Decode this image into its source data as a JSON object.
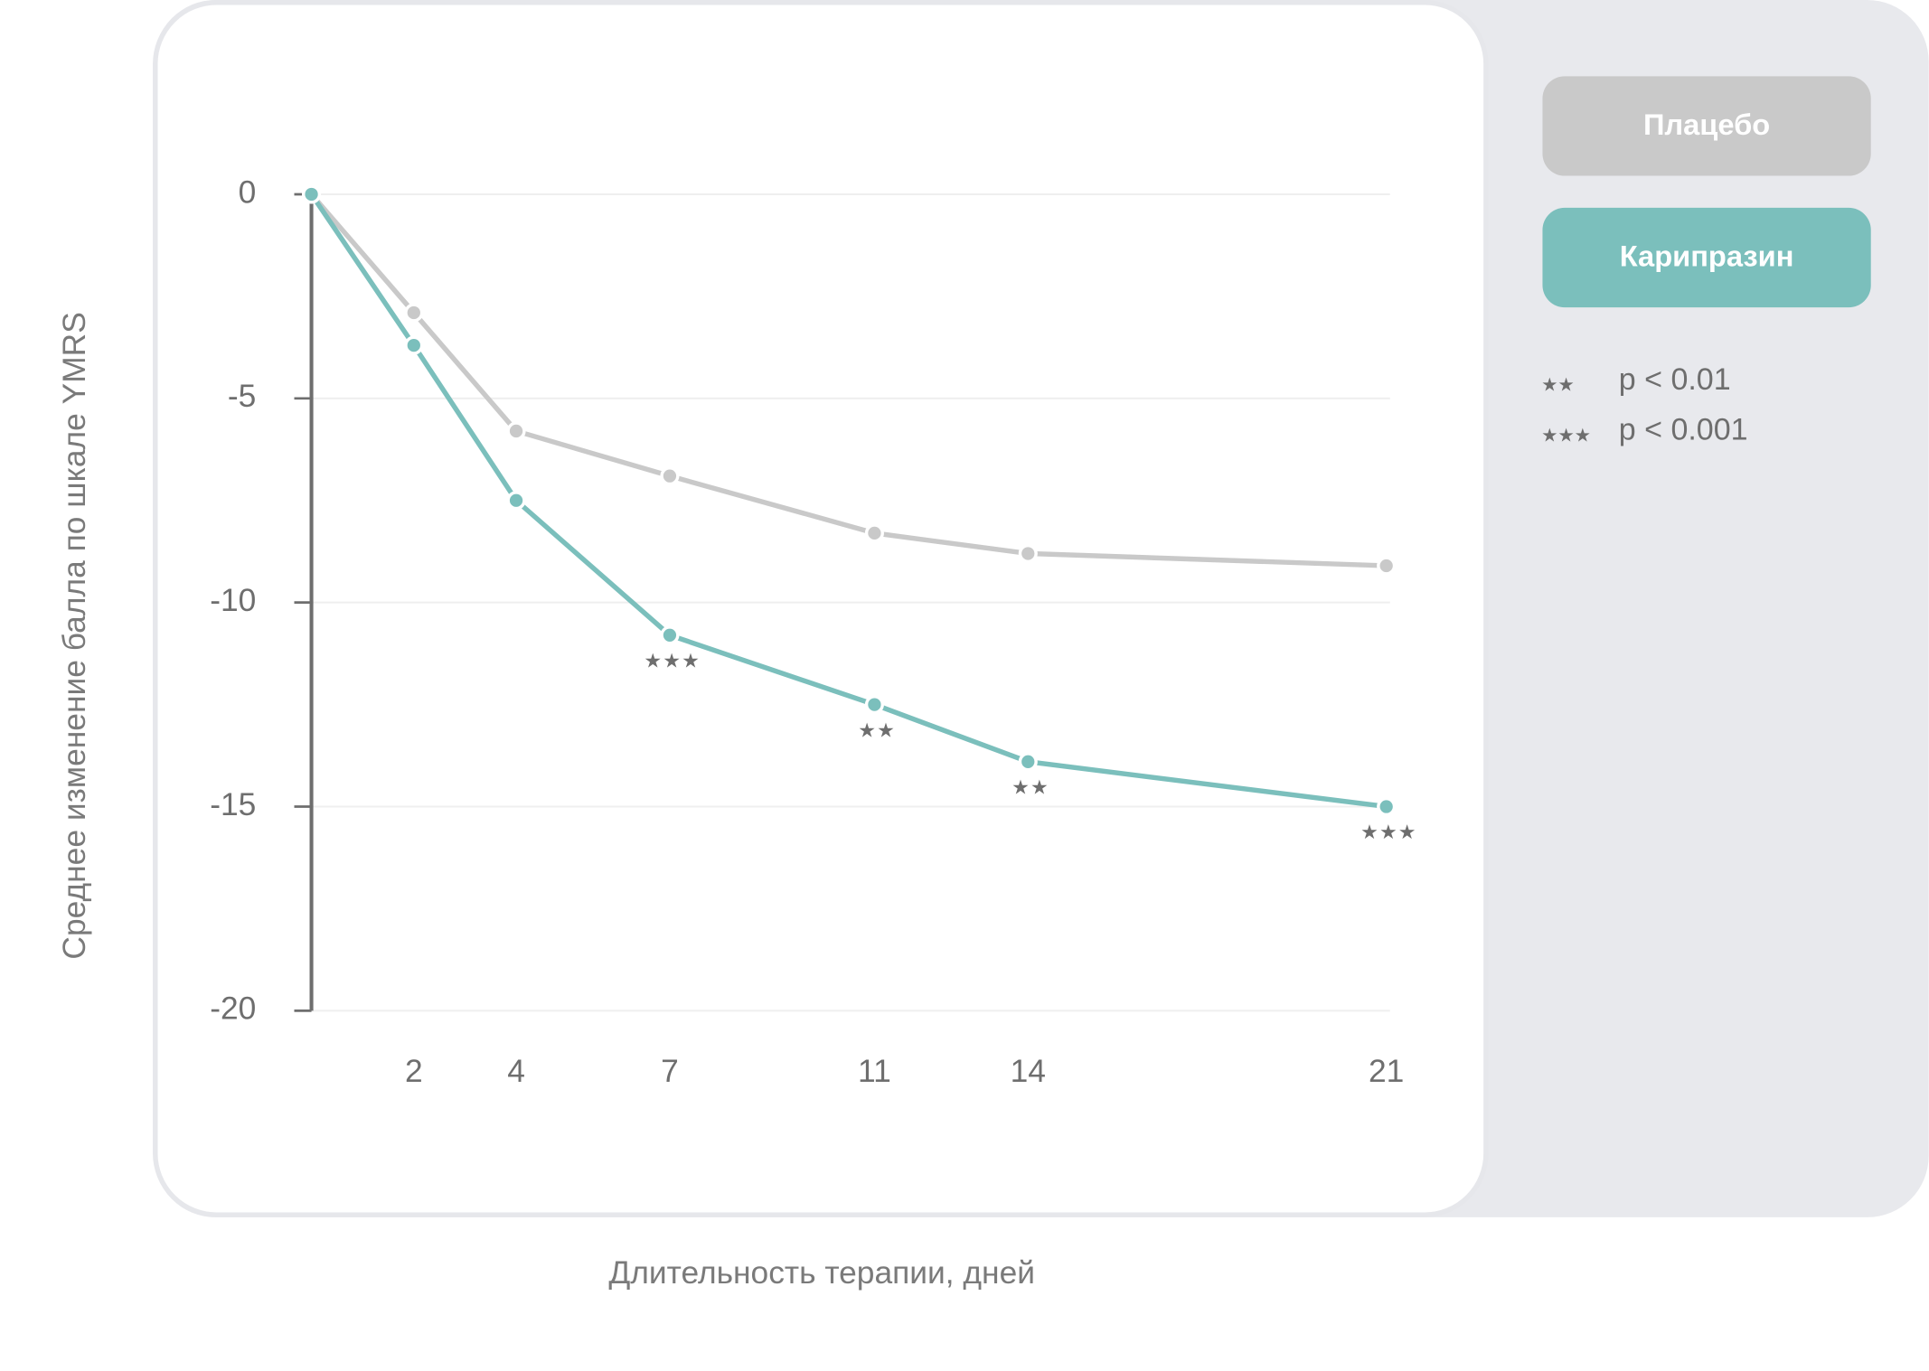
{
  "chart_data": {
    "type": "line",
    "y_label": "Среднее изменение балла по шкале YMRS",
    "x_label": "Длительность терапии, дней",
    "x": [
      0,
      2,
      4,
      7,
      11,
      14,
      21
    ],
    "xticks": [
      2,
      4,
      7,
      11,
      14,
      21
    ],
    "xlim": [
      0,
      21
    ],
    "ylim": [
      -20,
      0
    ],
    "yticks": [
      0,
      -5,
      -10,
      -15,
      -20
    ],
    "grid": true,
    "series": [
      {
        "name": "Плацебо",
        "color": "#c9c9c9",
        "values": [
          0,
          -2.9,
          -5.8,
          -6.9,
          -8.3,
          -8.8,
          -9.1
        ]
      },
      {
        "name": "Карипразин",
        "color": "#7bbfbc",
        "values": [
          0,
          -3.7,
          -7.5,
          -10.8,
          -12.5,
          -13.9,
          -15
        ],
        "annotations": [
          null,
          null,
          null,
          "★★★",
          "★★",
          "★★",
          "★★★"
        ]
      }
    ],
    "notes": [
      {
        "symbol": "★★",
        "text": "p < 0.01"
      },
      {
        "symbol": "★★★",
        "text": "p < 0.001"
      }
    ]
  }
}
